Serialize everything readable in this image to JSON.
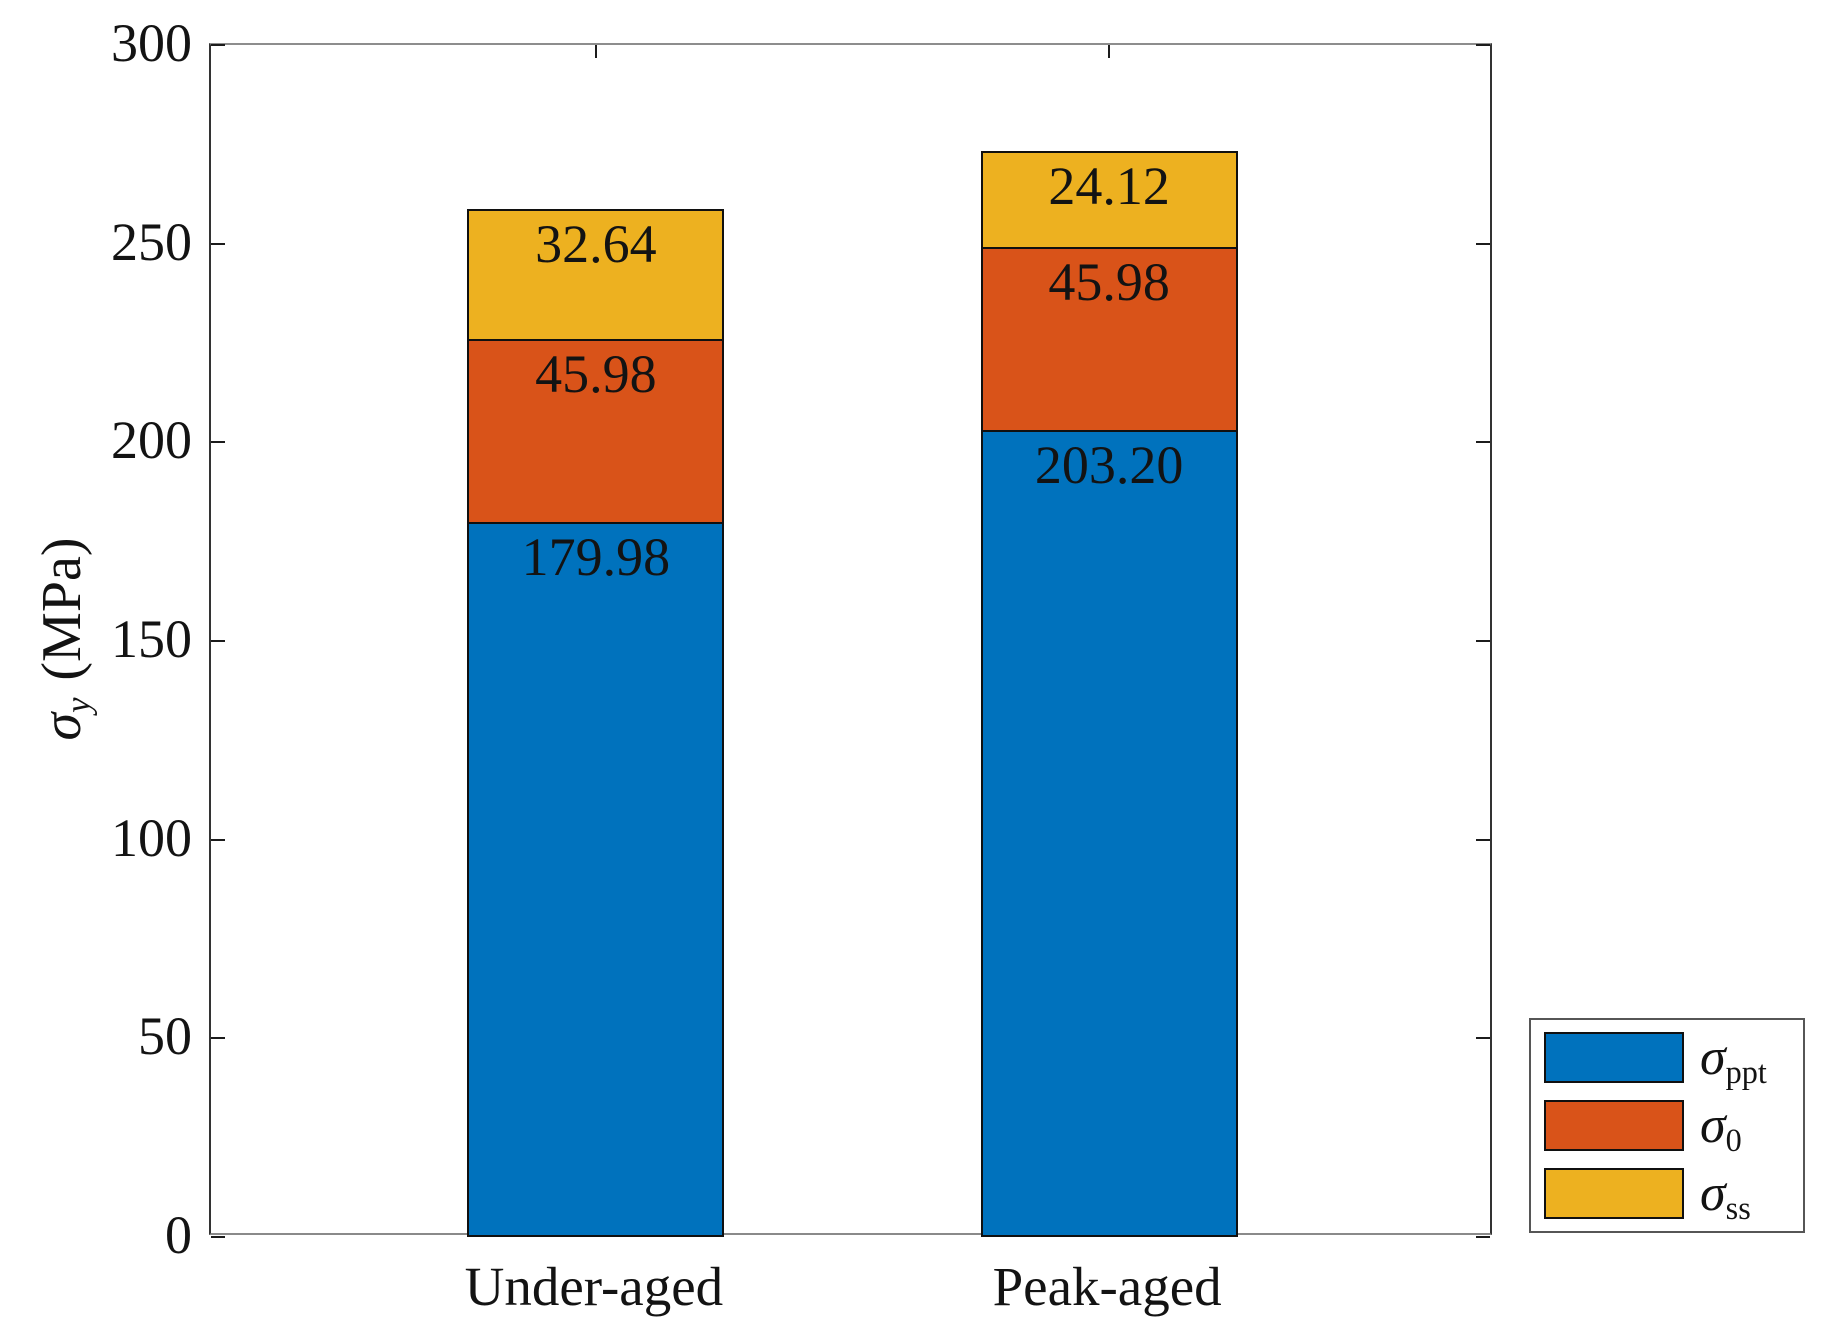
{
  "chart_data": {
    "type": "bar",
    "stacked": true,
    "title": "",
    "categories": [
      "Under-aged",
      "Peak-aged"
    ],
    "series": [
      {
        "name": "sigma-ppt",
        "symbol": "σ",
        "subscript": "ppt",
        "color": "#0072BD",
        "values": [
          179.98,
          203.2
        ]
      },
      {
        "name": "sigma-0",
        "symbol": "σ",
        "subscript": "0",
        "color": "#D95319",
        "values": [
          45.98,
          45.98
        ]
      },
      {
        "name": "sigma-ss",
        "symbol": "σ",
        "subscript": "ss",
        "color": "#EDB120",
        "values": [
          32.64,
          24.12
        ]
      }
    ],
    "totals": [
      258.6,
      273.3
    ],
    "value_label_decimals": 2,
    "value_labels": [
      [
        "179.98",
        "45.98",
        "32.64"
      ],
      [
        "203.20",
        "45.98",
        "24.12"
      ]
    ],
    "ylabel": {
      "symbol": "σ",
      "subscript": "y",
      "unit": "(MPa)"
    },
    "ylim": [
      0,
      300
    ],
    "yticks": [
      "0",
      "50",
      "100",
      "150",
      "200",
      "250",
      "300"
    ],
    "xlabel": "",
    "grid": false,
    "legend_position": "outside-bottom-right",
    "background": "#FFFFFF",
    "colors": {
      "axis_vertical": "#333333",
      "axis_horizontal": "#8A8A8A",
      "bar_outline": "#101010",
      "text": "#131313"
    }
  }
}
